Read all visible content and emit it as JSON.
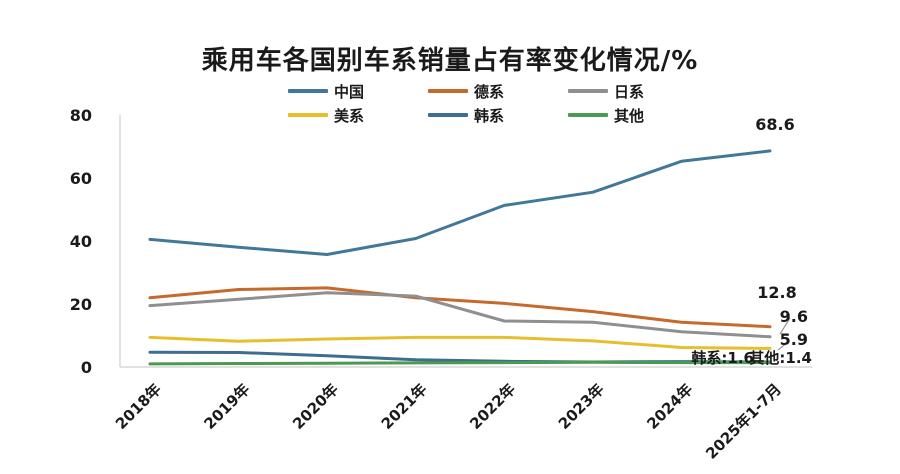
{
  "chart_data": {
    "type": "line",
    "title": "乘用车各国别车系销量占有率变化情况/%",
    "categories": [
      "2018年",
      "2019年",
      "2020年",
      "2021年",
      "2022年",
      "2023年",
      "2024年",
      "2025年1-7月"
    ],
    "ylim": [
      0,
      80
    ],
    "yticks": [
      "0",
      "20",
      "40",
      "60",
      "80"
    ],
    "grid": false,
    "legend_position": "top",
    "series": [
      {
        "name": "中国",
        "color": "#41789a",
        "values": [
          40.5,
          38.0,
          35.7,
          40.8,
          51.3,
          55.5,
          65.3,
          68.6
        ]
      },
      {
        "name": "德系",
        "color": "#c56a2c",
        "values": [
          22.0,
          24.6,
          25.1,
          22.0,
          20.2,
          17.6,
          14.2,
          12.8
        ]
      },
      {
        "name": "日系",
        "color": "#8f8f8f",
        "values": [
          19.5,
          21.5,
          23.6,
          22.5,
          14.6,
          14.2,
          11.2,
          9.6
        ]
      },
      {
        "name": "美系",
        "color": "#e7bf2e",
        "values": [
          9.4,
          8.2,
          8.9,
          9.4,
          9.4,
          8.3,
          6.2,
          5.9
        ]
      },
      {
        "name": "韩系",
        "color": "#3d6e8f",
        "values": [
          4.7,
          4.6,
          3.6,
          2.3,
          1.8,
          1.6,
          1.7,
          1.6
        ]
      },
      {
        "name": "其他",
        "color": "#4a9a4f",
        "values": [
          1.0,
          1.1,
          1.2,
          1.3,
          1.4,
          1.5,
          1.4,
          1.4
        ]
      }
    ],
    "data_labels": [
      {
        "series": "中国",
        "text": "68.6"
      },
      {
        "series": "德系",
        "text": "12.8"
      },
      {
        "series": "日系",
        "text": "9.6"
      },
      {
        "series": "美系",
        "text": "5.9"
      },
      {
        "series": "韩系",
        "text": "韩系:1.6"
      },
      {
        "series": "其他",
        "text": "其他:1.4"
      }
    ]
  }
}
